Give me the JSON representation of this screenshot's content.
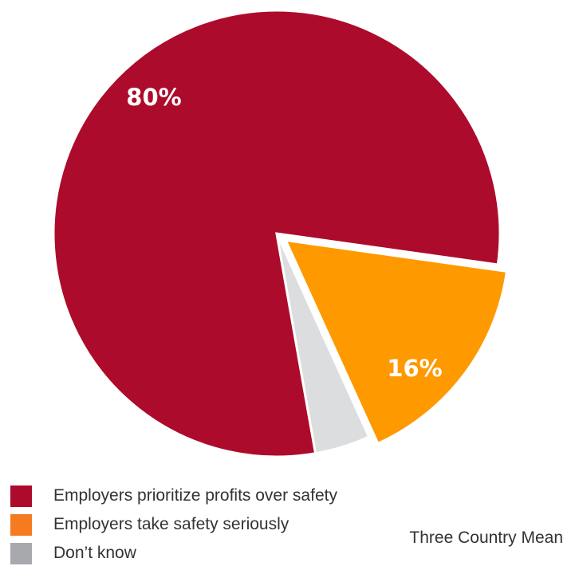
{
  "chart_data": {
    "type": "pie",
    "slices": [
      {
        "name": "Employers prioritize profits over safety",
        "value": 80,
        "label": "80%",
        "color": "#AD0B2B"
      },
      {
        "name": "Employers take safety seriously",
        "value": 16,
        "label": "16%",
        "color": "#FF9900"
      },
      {
        "name": "Don’t know",
        "value": 4,
        "label": "",
        "color": "#DCDDDE"
      }
    ],
    "legend_placement": "bottom-left"
  },
  "legend": {
    "items": [
      {
        "label": "Employers prioritize profits over safety",
        "color": "#AD0B2B"
      },
      {
        "label": "Employers take safety seriously",
        "color": "#F47B20"
      },
      {
        "label": "Don’t know",
        "color": "#A7A9AC"
      }
    ]
  },
  "footnote": "Three Country Mean"
}
